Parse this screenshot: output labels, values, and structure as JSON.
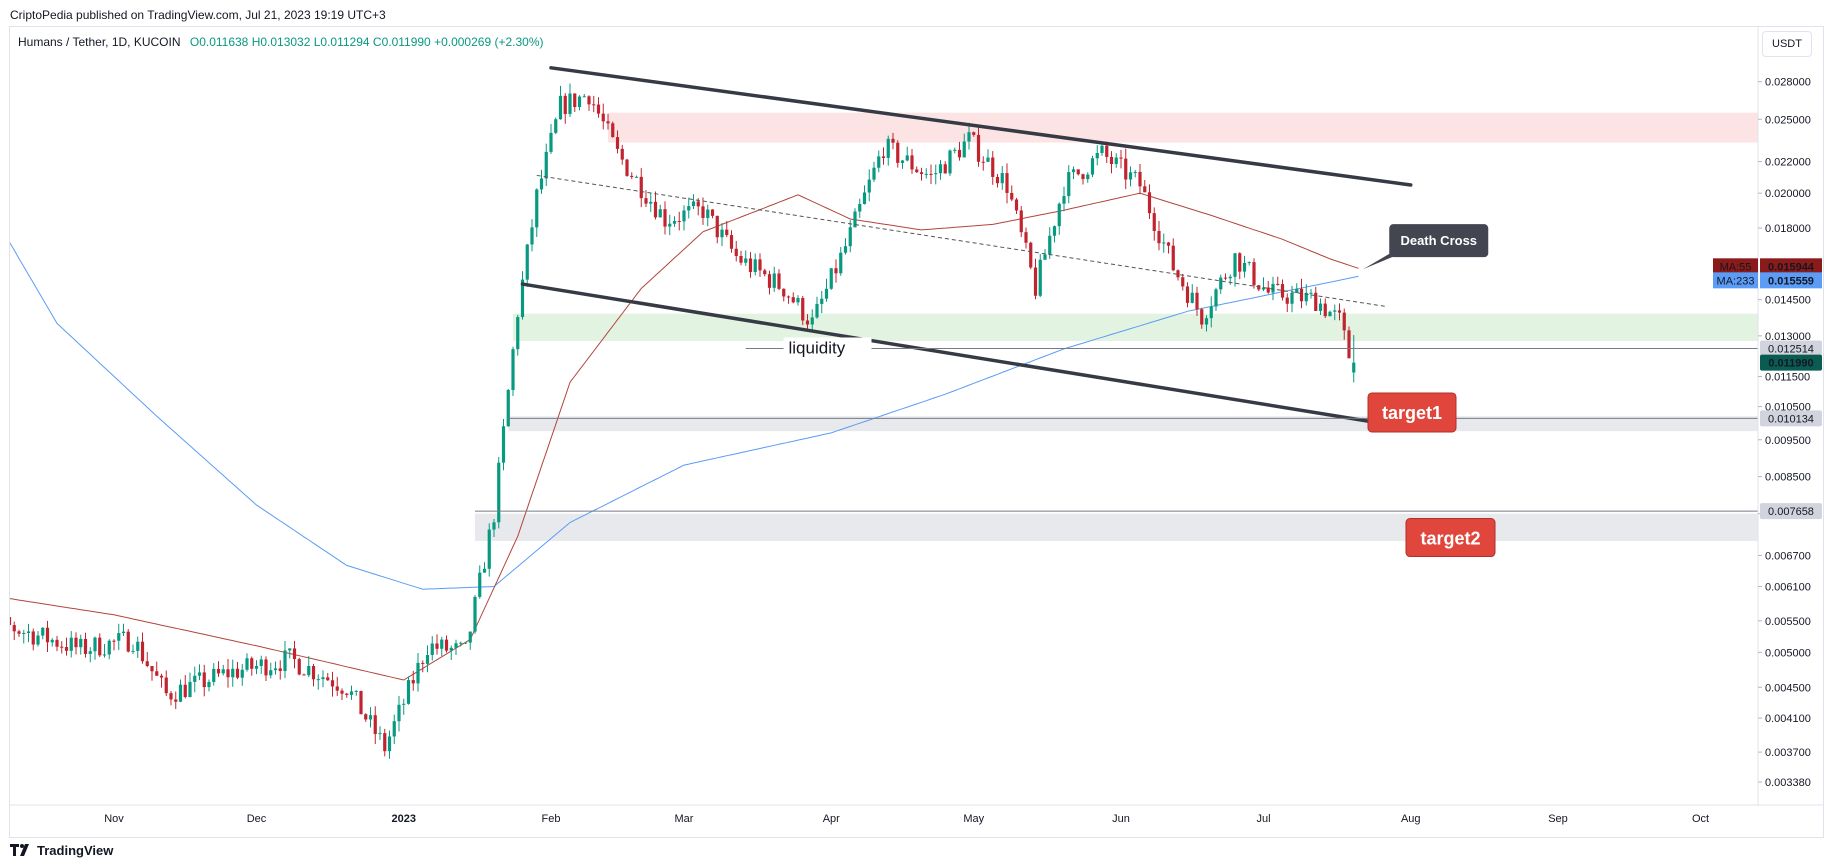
{
  "header": {
    "publish_line": "CriptoPedia published on TradingView.com, Jul 21, 2023 19:19 UTC+3",
    "symbol": "Humans / Tether, 1D, KUCOIN",
    "ohlc": "O0.011638  H0.013032  L0.011294  C0.011990  +0.000269 (+2.30%)",
    "currency": "USDT"
  },
  "footer": {
    "brand": "TradingView"
  },
  "colors": {
    "up": "#089981",
    "down": "#c0242f",
    "ma55": "#b2453c",
    "ma233": "#5b9cf6",
    "resistance_zone": "#fce4e4",
    "support_zone": "#e2f3e1",
    "target_zone": "#e8e9ed",
    "channel": "#363a45",
    "target_box": "#e0463c",
    "callout": "#434651"
  },
  "chart_data": {
    "type": "candlestick",
    "title": "Humans / Tether, 1D, KUCOIN",
    "scale": "log",
    "ylim": [
      0.0033,
      0.031
    ],
    "x_labels": [
      "Nov",
      "Dec",
      "2023",
      "Feb",
      "Mar",
      "Apr",
      "May",
      "Jun",
      "Jul",
      "Aug",
      "Sep",
      "Oct"
    ],
    "y_ticks": [
      "0.028000",
      "0.025000",
      "0.022000",
      "0.020000",
      "0.018000",
      "0.014500",
      "0.013000",
      "0.011500",
      "0.010500",
      "0.009500",
      "0.008500",
      "0.007600",
      "0.006700",
      "0.006100",
      "0.005500",
      "0.005000",
      "0.004500",
      "0.004100",
      "0.003700",
      "0.003380"
    ],
    "ohlc_last": {
      "open": 0.011638,
      "high": 0.013032,
      "low": 0.011294,
      "close": 0.01199,
      "change": 0.000269,
      "change_pct": "+2.30%"
    },
    "trend_anchors": [
      {
        "date": "2022-10-10",
        "price": 0.0054
      },
      {
        "date": "2022-10-25",
        "price": 0.00505
      },
      {
        "date": "2022-11-05",
        "price": 0.0052
      },
      {
        "date": "2022-11-12",
        "price": 0.0044
      },
      {
        "date": "2022-11-25",
        "price": 0.0047
      },
      {
        "date": "2022-12-08",
        "price": 0.0049
      },
      {
        "date": "2022-12-20",
        "price": 0.0045
      },
      {
        "date": "2022-12-28",
        "price": 0.00375
      },
      {
        "date": "2023-01-06",
        "price": 0.0051
      },
      {
        "date": "2023-01-14",
        "price": 0.005
      },
      {
        "date": "2023-01-20",
        "price": 0.0076
      },
      {
        "date": "2023-01-25",
        "price": 0.014
      },
      {
        "date": "2023-01-29",
        "price": 0.0198
      },
      {
        "date": "2023-02-03",
        "price": 0.026
      },
      {
        "date": "2023-02-09",
        "price": 0.027
      },
      {
        "date": "2023-02-15",
        "price": 0.0225
      },
      {
        "date": "2023-02-25",
        "price": 0.0185
      },
      {
        "date": "2023-03-05",
        "price": 0.019
      },
      {
        "date": "2023-03-12",
        "price": 0.0165
      },
      {
        "date": "2023-03-22",
        "price": 0.015
      },
      {
        "date": "2023-03-28",
        "price": 0.0135
      },
      {
        "date": "2023-04-04",
        "price": 0.017
      },
      {
        "date": "2023-04-12",
        "price": 0.023
      },
      {
        "date": "2023-04-22",
        "price": 0.021
      },
      {
        "date": "2023-04-30",
        "price": 0.0235
      },
      {
        "date": "2023-05-08",
        "price": 0.0205
      },
      {
        "date": "2023-05-14",
        "price": 0.015
      },
      {
        "date": "2023-05-20",
        "price": 0.0205
      },
      {
        "date": "2023-05-28",
        "price": 0.0225
      },
      {
        "date": "2023-06-05",
        "price": 0.0205
      },
      {
        "date": "2023-06-12",
        "price": 0.016
      },
      {
        "date": "2023-06-18",
        "price": 0.0138
      },
      {
        "date": "2023-06-25",
        "price": 0.0165
      },
      {
        "date": "2023-07-02",
        "price": 0.0148
      },
      {
        "date": "2023-07-12",
        "price": 0.0145
      },
      {
        "date": "2023-07-17",
        "price": 0.0136
      },
      {
        "date": "2023-07-20",
        "price": 0.01164
      }
    ],
    "ma55_anchors": [
      {
        "date": "2022-10-01",
        "price": 0.006
      },
      {
        "date": "2022-11-01",
        "price": 0.0056
      },
      {
        "date": "2022-12-01",
        "price": 0.0051
      },
      {
        "date": "2023-01-01",
        "price": 0.0046
      },
      {
        "date": "2023-01-15",
        "price": 0.0052
      },
      {
        "date": "2023-01-25",
        "price": 0.0071
      },
      {
        "date": "2023-02-05",
        "price": 0.0113
      },
      {
        "date": "2023-02-20",
        "price": 0.015
      },
      {
        "date": "2023-03-05",
        "price": 0.0178
      },
      {
        "date": "2023-03-25",
        "price": 0.0199
      },
      {
        "date": "2023-04-05",
        "price": 0.0185
      },
      {
        "date": "2023-04-20",
        "price": 0.0179
      },
      {
        "date": "2023-05-05",
        "price": 0.0182
      },
      {
        "date": "2023-05-20",
        "price": 0.019
      },
      {
        "date": "2023-06-05",
        "price": 0.02
      },
      {
        "date": "2023-06-20",
        "price": 0.0187
      },
      {
        "date": "2023-07-05",
        "price": 0.0174
      },
      {
        "date": "2023-07-15",
        "price": 0.0164
      },
      {
        "date": "2023-07-21",
        "price": 0.01594
      }
    ],
    "ma233_anchors": [
      {
        "date": "2022-10-01",
        "price": 0.0215
      },
      {
        "date": "2022-10-20",
        "price": 0.0135
      },
      {
        "date": "2022-11-10",
        "price": 0.0102
      },
      {
        "date": "2022-12-01",
        "price": 0.0078
      },
      {
        "date": "2022-12-20",
        "price": 0.0065
      },
      {
        "date": "2023-01-05",
        "price": 0.00605
      },
      {
        "date": "2023-01-20",
        "price": 0.0061
      },
      {
        "date": "2023-02-05",
        "price": 0.0074
      },
      {
        "date": "2023-03-01",
        "price": 0.0088
      },
      {
        "date": "2023-04-01",
        "price": 0.0097
      },
      {
        "date": "2023-04-25",
        "price": 0.0109
      },
      {
        "date": "2023-05-20",
        "price": 0.0125
      },
      {
        "date": "2023-06-15",
        "price": 0.014
      },
      {
        "date": "2023-07-21",
        "price": 0.01556
      }
    ],
    "series": [
      {
        "name": "MA:55",
        "last": "0.015944",
        "color": "#8b1a1a"
      },
      {
        "name": "MA:233",
        "last": "0.015559",
        "color": "#5b9cf6"
      }
    ],
    "price_tags": [
      {
        "value": "0.012514",
        "style": "gray"
      },
      {
        "value": "0.011990",
        "style": "close"
      },
      {
        "value": "0.010134",
        "style": "gray"
      },
      {
        "value": "0.007658",
        "style": "gray"
      }
    ],
    "zones": [
      {
        "name": "resistance",
        "low": 0.0233,
        "high": 0.0255
      },
      {
        "name": "support",
        "low": 0.0128,
        "high": 0.0139
      },
      {
        "name": "target1",
        "low": 0.00975,
        "high": 0.0102
      },
      {
        "name": "target2",
        "low": 0.007,
        "high": 0.0076
      }
    ],
    "annotations": [
      "Death Cross",
      "liquidity",
      "target1",
      "target2"
    ]
  }
}
